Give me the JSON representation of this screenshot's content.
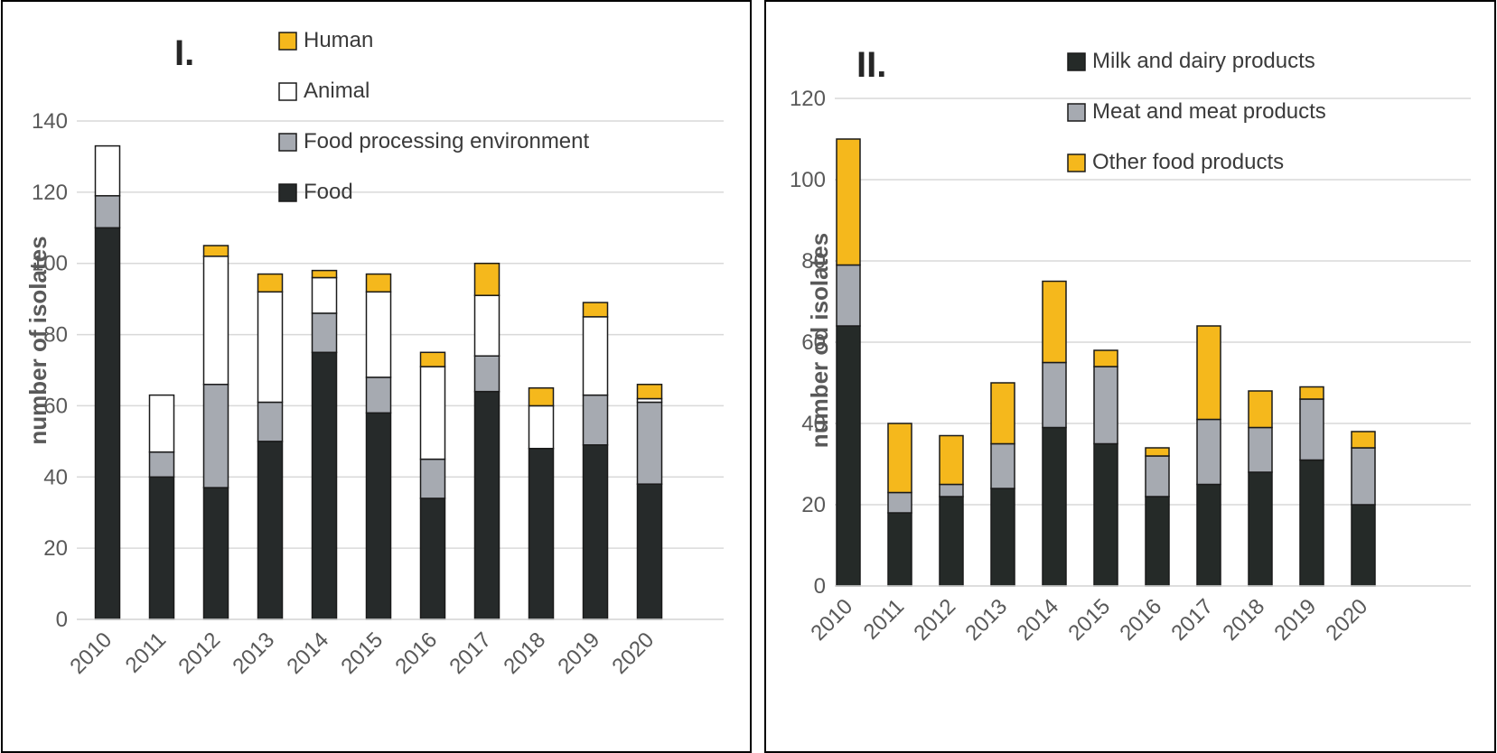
{
  "chart_data": [
    {
      "type": "bar",
      "stacked": true,
      "title": "I.",
      "xlabel": "",
      "ylabel": "number of isolates",
      "ylim": [
        0,
        140
      ],
      "yticks": [
        0,
        20,
        40,
        60,
        80,
        100,
        120,
        140
      ],
      "categories": [
        "2010",
        "2011",
        "2012",
        "2013",
        "2014",
        "2015",
        "2016",
        "2017",
        "2018",
        "2019",
        "2020"
      ],
      "series": [
        {
          "name": "Food",
          "color": "#262a2a",
          "values": [
            110,
            40,
            37,
            50,
            75,
            58,
            34,
            64,
            48,
            49,
            38
          ]
        },
        {
          "name": "Food processing environment",
          "color": "#a6aab1",
          "values": [
            9,
            7,
            29,
            11,
            11,
            10,
            11,
            10,
            0,
            14,
            23
          ]
        },
        {
          "name": "Animal",
          "color": "#ffffff",
          "values": [
            14,
            16,
            36,
            31,
            10,
            24,
            26,
            17,
            12,
            22,
            1
          ]
        },
        {
          "name": "Human",
          "color": "#f5b81c",
          "values": [
            0,
            0,
            3,
            5,
            2,
            5,
            4,
            9,
            5,
            4,
            4
          ]
        }
      ],
      "legend_order": [
        "Human",
        "Animal",
        "Food processing environment",
        "Food"
      ],
      "legend_position": "top-right",
      "grid": true
    },
    {
      "type": "bar",
      "stacked": true,
      "title": "II.",
      "xlabel": "",
      "ylabel": "number od isolates",
      "ylim": [
        0,
        120
      ],
      "yticks": [
        0,
        20,
        40,
        60,
        80,
        100,
        120
      ],
      "categories": [
        "2010",
        "2011",
        "2012",
        "2013",
        "2014",
        "2015",
        "2016",
        "2017",
        "2018",
        "2019",
        "2020"
      ],
      "series": [
        {
          "name": "Milk and dairy products",
          "color": "#252a28",
          "values": [
            64,
            18,
            22,
            24,
            39,
            35,
            22,
            25,
            28,
            31,
            20
          ]
        },
        {
          "name": "Meat and meat products",
          "color": "#a6aab1",
          "values": [
            15,
            5,
            3,
            11,
            16,
            19,
            10,
            16,
            11,
            15,
            14
          ]
        },
        {
          "name": "Other food products",
          "color": "#f5b81c",
          "values": [
            31,
            17,
            12,
            15,
            20,
            4,
            2,
            23,
            9,
            3,
            4
          ]
        }
      ],
      "legend_order": [
        "Milk and dairy products",
        "Meat and meat products",
        "Other food products"
      ],
      "legend_position": "top-right",
      "grid": true
    }
  ]
}
